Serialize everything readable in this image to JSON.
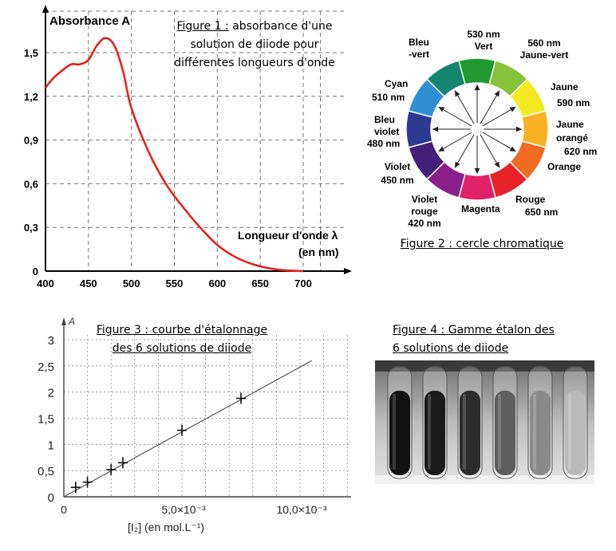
{
  "fig1": {
    "caption_prefix": "Figure 1 :",
    "caption_rest": "absorbance d'une",
    "caption_line2": "solution de diiode pour",
    "caption_line3": "différentes longueurs d'onde",
    "y_title": "Absorbance A",
    "x_title_line1": "Longueur d'onde λ",
    "x_title_line2": "(en nm)"
  },
  "fig2": {
    "caption": "Figure 2 : cercle chromatique",
    "colors": {
      "green": "#1f9a2f",
      "yellowgreen": "#86c23a",
      "yellow": "#f4ea24",
      "yelloworange": "#f8b023",
      "orange": "#f06a22",
      "red": "#e8242a",
      "magenta": "#e02167",
      "violet": "#8a1f8a",
      "indigo": "#44207a",
      "blueviolet": "#2a3a95",
      "cyan": "#2f8fd5",
      "bluegreen": "#16856d"
    },
    "labels": {
      "bleu_vert_1": "Bleu",
      "bleu_vert_2": "-vert",
      "vert_1": "530 nm",
      "vert_2": "Vert",
      "jaune_vert_1": "560 nm",
      "jaune_vert_2": "Jaune-vert",
      "jaune_1": "Jaune",
      "jaune_2": "590 nm",
      "jaune_orange_1": "Jaune",
      "jaune_orange_2": "orangé",
      "jaune_orange_3": "620 nm",
      "orange": "Orange",
      "rouge_1": "Rouge",
      "rouge_2": "650 nm",
      "magenta": "Magenta",
      "violet_rouge_1": "Violet",
      "violet_rouge_2": "rouge",
      "violet_rouge_3": "420 nm",
      "violet_1": "Violet",
      "violet_2": "450 nm",
      "bleu_violet_1": "Bleu",
      "bleu_violet_2": "violet",
      "bleu_violet_3": "480 nm",
      "cyan_1": "Cyan",
      "cyan_2": "510 nm"
    }
  },
  "fig3": {
    "caption_line1": "Figure 3 : courbe d'étalonnage",
    "caption_line2": "des 6 solutions de diiode",
    "y_title": "A",
    "x_title": "[I₂] (en mol.L⁻¹)"
  },
  "fig4": {
    "caption_line1": "Figure 4 : Gamme étalon des",
    "caption_line2": "6 solutions de diiode",
    "tube_shades": [
      "#121212",
      "#1a1a1a",
      "#2c2c2c",
      "#5e5e5e",
      "#8a8a8a",
      "#b9b9b9"
    ]
  },
  "chart_data": [
    {
      "type": "line",
      "x": [
        400,
        410,
        420,
        430,
        440,
        450,
        460,
        470,
        480,
        490,
        500,
        520,
        540,
        560,
        580,
        600,
        620,
        640,
        660,
        680,
        700
      ],
      "series": [
        {
          "values": [
            1.26,
            1.33,
            1.38,
            1.42,
            1.42,
            1.45,
            1.55,
            1.6,
            1.55,
            1.38,
            1.12,
            0.82,
            0.6,
            0.44,
            0.3,
            0.18,
            0.1,
            0.05,
            0.02,
            0.005,
            0.0
          ]
        }
      ],
      "color": "#e32222",
      "xlim": [
        400,
        720
      ],
      "ylim": [
        0,
        1.8
      ],
      "x_ticks": [
        "400",
        "450",
        "500",
        "550",
        "600",
        "650",
        "700"
      ],
      "y_ticks": [
        "0",
        "0,3",
        "0,6",
        "0,9",
        "1,2",
        "1,5"
      ],
      "grid": true
    },
    {
      "type": "scatter",
      "points": [
        {
          "x": 0.0005,
          "y": 0.18
        },
        {
          "x": 0.001,
          "y": 0.28
        },
        {
          "x": 0.002,
          "y": 0.52
        },
        {
          "x": 0.0025,
          "y": 0.65
        },
        {
          "x": 0.005,
          "y": 1.27
        },
        {
          "x": 0.0075,
          "y": 1.88
        }
      ],
      "trendline": {
        "x": [
          0,
          0.0105
        ],
        "y": [
          0,
          2.6
        ]
      },
      "xlim": [
        0,
        0.0125
      ],
      "ylim": [
        0,
        3.1
      ],
      "x_ticks": [
        "0",
        "5,0×10⁻³",
        "10,0×10⁻³"
      ],
      "y_ticks": [
        "0",
        "0,5",
        "1",
        "1,5",
        "2",
        "2,5",
        "3"
      ],
      "grid": true
    }
  ]
}
